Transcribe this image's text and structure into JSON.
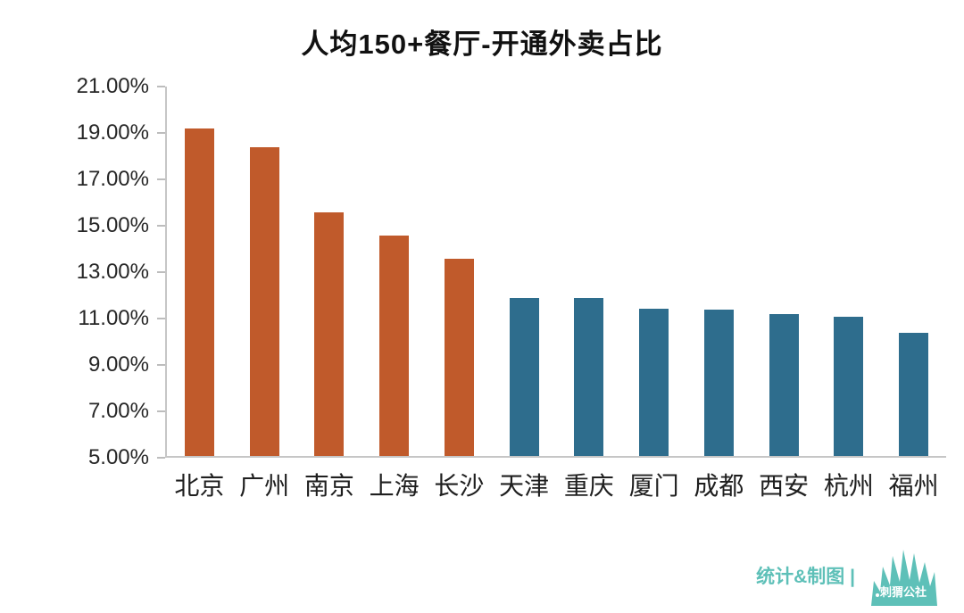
{
  "page": {
    "background": "#ffffff"
  },
  "chart_data": {
    "type": "bar",
    "title": "人均150+餐厅-开通外卖占比",
    "categories": [
      "北京",
      "广州",
      "南京",
      "上海",
      "长沙",
      "天津",
      "重庆",
      "厦门",
      "成都",
      "西安",
      "杭州",
      "福州"
    ],
    "values": [
      19.1,
      18.3,
      15.5,
      14.5,
      13.5,
      11.8,
      11.8,
      11.35,
      11.3,
      11.1,
      11.0,
      10.3
    ],
    "series_colors": [
      "#C05A2B",
      "#C05A2B",
      "#C05A2B",
      "#C05A2B",
      "#C05A2B",
      "#2E6D8D",
      "#2E6D8D",
      "#2E6D8D",
      "#2E6D8D",
      "#2E6D8D",
      "#2E6D8D",
      "#2E6D8D"
    ],
    "ylim": [
      5,
      21
    ],
    "yticks": [
      5,
      7,
      9,
      11,
      13,
      15,
      17,
      19,
      21
    ],
    "ytick_labels": [
      "5.00%",
      "7.00%",
      "9.00%",
      "11.00%",
      "13.00%",
      "15.00%",
      "17.00%",
      "19.00%",
      "21.00%"
    ],
    "xlabel": "",
    "ylabel": "",
    "grid": false,
    "legend": false
  },
  "footer": {
    "credit": "统计&制图 |",
    "brand": "刺猬公社",
    "logo_icon": "hedgehog-icon",
    "accent_color": "#5EC0B8"
  },
  "colors": {
    "orange": "#C05A2B",
    "blue": "#2E6D8D",
    "axis": "#BDBDBD",
    "text": "#262626",
    "teal": "#5EC0B8"
  }
}
